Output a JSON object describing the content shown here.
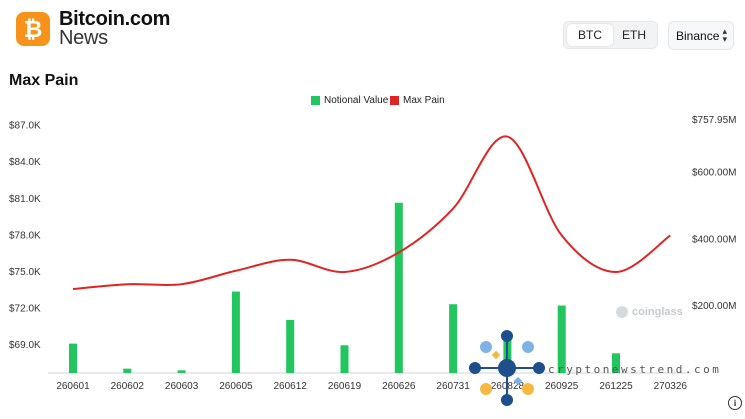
{
  "header": {
    "logo_icon": "bitcoin-icon",
    "logo_glyph": "₿",
    "brand_line1": "Bitcoin.com",
    "brand_line2": "News"
  },
  "controls": {
    "asset_tabs": [
      {
        "label": "BTC",
        "active": true
      },
      {
        "label": "ETH",
        "active": false
      }
    ],
    "exchange": {
      "selected": "Binance",
      "icon": "chevron-up-down-icon"
    }
  },
  "chart_title": "Max Pain",
  "chart_data": {
    "type": "bar",
    "title": "Max Pain",
    "categories": [
      "260601",
      "260602",
      "260603",
      "260605",
      "260612",
      "260619",
      "260626",
      "260731",
      "260828",
      "260925",
      "261225",
      "270326"
    ],
    "series": [
      {
        "name": "Notional Value",
        "type": "bar",
        "axis": "right",
        "color": "#22c55e",
        "values": [
          88,
          13,
          8,
          244,
          159,
          83,
          510,
          206,
          122,
          202,
          59,
          null
        ]
      },
      {
        "name": "Max Pain",
        "type": "line",
        "axis": "left",
        "color": "#e02424",
        "values": [
          73600,
          74000,
          74000,
          75100,
          76000,
          75000,
          76600,
          80200,
          86100,
          78000,
          75000,
          78000
        ]
      }
    ],
    "y_left": {
      "ticks": [
        "$69.0K",
        "$72.0K",
        "$75.0K",
        "$78.0K",
        "$81.0K",
        "$84.0K",
        "$87.0K"
      ],
      "range": [
        66720,
        87460
      ]
    },
    "y_right": {
      "ticks": [
        "$200.00M",
        "$400.00M",
        "$600.00M",
        "$757.95M"
      ],
      "range": [
        0,
        757.95
      ]
    },
    "grid": false,
    "legend": "top-center"
  },
  "watermarks": {
    "coinglass": "coinglass",
    "site": "cryptonewstrend.com"
  },
  "info_glyph": "i"
}
